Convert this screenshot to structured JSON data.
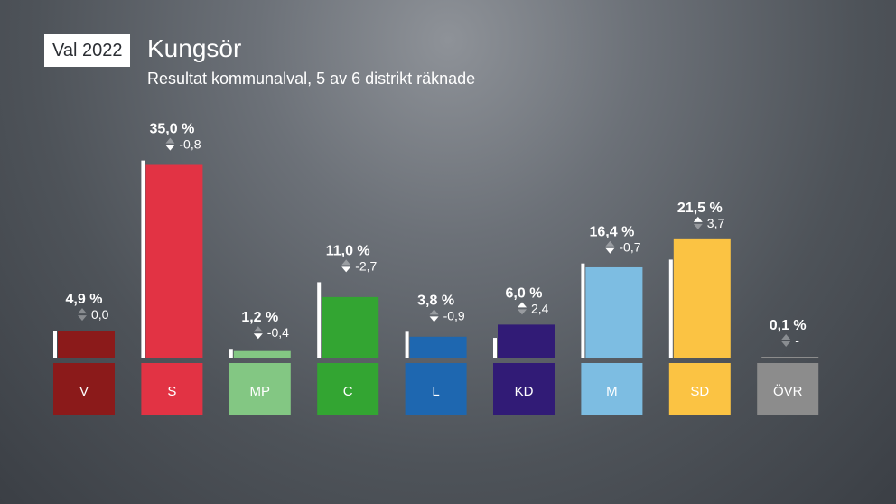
{
  "header": {
    "badge": "Val 2022",
    "title": "Kungsör",
    "subtitle": "Resultat kommunalval, 5 av 6 distrikt räknade"
  },
  "chart_data": {
    "type": "bar",
    "categories": [
      "V",
      "S",
      "MP",
      "C",
      "L",
      "KD",
      "M",
      "SD",
      "ÖVR"
    ],
    "values": [
      4.9,
      35.0,
      1.2,
      11.0,
      3.8,
      6.0,
      16.4,
      21.5,
      0.1
    ],
    "value_labels": [
      "4,9 %",
      "35,0 %",
      "1,2 %",
      "11,0 %",
      "3,8 %",
      "6,0 %",
      "16,4 %",
      "21,5 %",
      "0,1 %"
    ],
    "previous_values": [
      4.9,
      35.8,
      1.6,
      13.7,
      4.7,
      3.6,
      17.1,
      17.8,
      null
    ],
    "changes": [
      0.0,
      -0.8,
      -0.4,
      -2.7,
      -0.9,
      2.4,
      -0.7,
      3.7,
      null
    ],
    "change_labels": [
      "0,0",
      "-0,8",
      "-0,4",
      "-2,7",
      "-0,9",
      "2,4",
      "-0,7",
      "3,7",
      "-"
    ],
    "colors": [
      "#8b1a1a",
      "#e23344",
      "#83c783",
      "#33a532",
      "#1e67b0",
      "#311b76",
      "#7dbde2",
      "#fbc343",
      "#8c8c8c"
    ],
    "title": "Kungsör",
    "subtitle": "Resultat kommunalval, 5 av 6 distrikt räknade",
    "xlabel": "",
    "ylabel": "",
    "grid": false,
    "legend": "none"
  }
}
